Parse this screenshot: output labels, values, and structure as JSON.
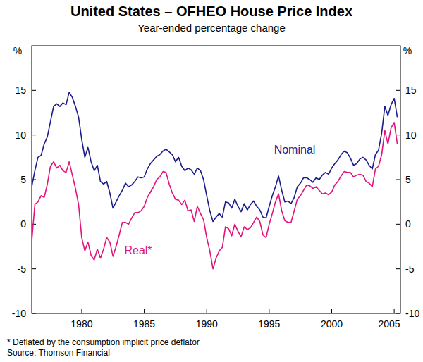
{
  "chart_data": {
    "type": "line",
    "title": "United States – OFHEO House Price Index",
    "subtitle": "Year-ended percentage change",
    "y_label": "%",
    "notes": [
      "* Deflated by the consumption implicit price deflator",
      "Source: Thomson Financial"
    ],
    "x": [
      1976,
      1976.25,
      1976.5,
      1976.75,
      1977,
      1977.25,
      1977.5,
      1977.75,
      1978,
      1978.25,
      1978.5,
      1978.75,
      1979,
      1979.25,
      1979.5,
      1979.75,
      1980,
      1980.25,
      1980.5,
      1980.75,
      1981,
      1981.25,
      1981.5,
      1981.75,
      1982,
      1982.25,
      1982.5,
      1982.75,
      1983,
      1983.25,
      1983.5,
      1983.75,
      1984,
      1984.25,
      1984.5,
      1984.75,
      1985,
      1985.25,
      1985.5,
      1985.75,
      1986,
      1986.25,
      1986.5,
      1986.75,
      1987,
      1987.25,
      1987.5,
      1987.75,
      1988,
      1988.25,
      1988.5,
      1988.75,
      1989,
      1989.25,
      1989.5,
      1989.75,
      1990,
      1990.25,
      1990.5,
      1990.75,
      1991,
      1991.25,
      1991.5,
      1991.75,
      1992,
      1992.25,
      1992.5,
      1992.75,
      1993,
      1993.25,
      1993.5,
      1993.75,
      1994,
      1994.25,
      1994.5,
      1994.75,
      1995,
      1995.25,
      1995.5,
      1995.75,
      1996,
      1996.25,
      1996.5,
      1996.75,
      1997,
      1997.25,
      1997.5,
      1997.75,
      1998,
      1998.25,
      1998.5,
      1998.75,
      1999,
      1999.25,
      1999.5,
      1999.75,
      2000,
      2000.25,
      2000.5,
      2000.75,
      2001,
      2001.25,
      2001.5,
      2001.75,
      2002,
      2002.25,
      2002.5,
      2002.75,
      2003,
      2003.25,
      2003.5,
      2003.75,
      2004,
      2004.25,
      2004.5,
      2004.75,
      2005,
      2005.25
    ],
    "series": [
      {
        "name": "Nominal",
        "color": "#1c1c8c",
        "values": [
          4.2,
          6,
          7.5,
          7.7,
          9,
          9.8,
          11.5,
          13.2,
          13.5,
          13.2,
          13.6,
          13.4,
          14.8,
          14.2,
          13.2,
          12,
          9.5,
          7.5,
          8.6,
          7,
          6,
          6.6,
          4.8,
          4.5,
          4.8,
          3.5,
          1.8,
          2.5,
          3.2,
          3.8,
          4.6,
          4.2,
          4.4,
          4.8,
          5.3,
          5.2,
          5.3,
          6.2,
          6.8,
          7.2,
          7.6,
          7.8,
          8.2,
          8.4,
          8.1,
          7.8,
          7,
          7.5,
          6.5,
          6,
          6.3,
          6.1,
          5.6,
          6.3,
          6,
          5,
          3.2,
          1.5,
          0.3,
          0.8,
          1.2,
          0.8,
          2.5,
          2.4,
          1.8,
          2.8,
          2,
          1.4,
          2.3,
          1.6,
          2.2,
          2.6,
          2,
          1.6,
          0.8,
          0.7,
          2,
          3.2,
          4.2,
          5.4,
          3.8,
          2.5,
          2.6,
          2.3,
          3,
          4.2,
          4.6,
          5.2,
          5.2,
          5,
          4.7,
          5.2,
          5,
          5.5,
          5.8,
          5.6,
          6.3,
          6.8,
          7.2,
          7.8,
          8.2,
          8,
          7.4,
          6.6,
          6.8,
          7.3,
          7.5,
          7.2,
          6.6,
          6.2,
          7.8,
          8.3,
          10.2,
          13.2,
          12.2,
          13.4,
          14.1,
          12
        ]
      },
      {
        "name": "Real*",
        "color": "#e0147c",
        "values": [
          -1.9,
          2.2,
          2.5,
          3.2,
          3,
          4.5,
          6.5,
          7,
          6.3,
          6.6,
          6,
          5.8,
          7,
          5.5,
          4,
          2.2,
          -1.5,
          -3,
          -2,
          -3.5,
          -4,
          -2.8,
          -3.8,
          -2.8,
          -1.5,
          -2,
          -3.6,
          -2.5,
          -1.2,
          0.2,
          0.2,
          0,
          0.7,
          1.3,
          1.3,
          1.5,
          2,
          3,
          3.6,
          4.2,
          5,
          5.3,
          5.9,
          5.8,
          4.5,
          3.5,
          2.8,
          2.7,
          2.2,
          2.7,
          1.5,
          1.6,
          0.3,
          2,
          1.2,
          0.5,
          -1.5,
          -3,
          -5,
          -3.8,
          -3,
          -2.6,
          -0.3,
          -0.5,
          -1.3,
          0,
          -0.8,
          -1.4,
          -0.3,
          -0.6,
          -0.4,
          0.2,
          0.8,
          0.3,
          -1.2,
          -1.5,
          0,
          1.2,
          2.5,
          3.4,
          1.5,
          0.4,
          0.2,
          0.2,
          1.5,
          2.8,
          3.2,
          3.8,
          4.4,
          4.3,
          4,
          4.2,
          3.8,
          3.4,
          3.5,
          3.3,
          3.6,
          4.4,
          4.8,
          5.4,
          5.9,
          5.8,
          5.8,
          5.3,
          5.5,
          5.6,
          5.5,
          4.8,
          4.6,
          4.2,
          6.2,
          6.5,
          7.8,
          10.5,
          9,
          10.8,
          11.4,
          9
        ]
      }
    ],
    "xlim": [
      1976,
      2005.5
    ],
    "xticks": [
      1980,
      1985,
      1990,
      1995,
      2000,
      2005
    ],
    "ylim": [
      -10,
      20
    ],
    "yticks": [
      -10,
      -5,
      0,
      5,
      10,
      15
    ],
    "grid": false
  }
}
